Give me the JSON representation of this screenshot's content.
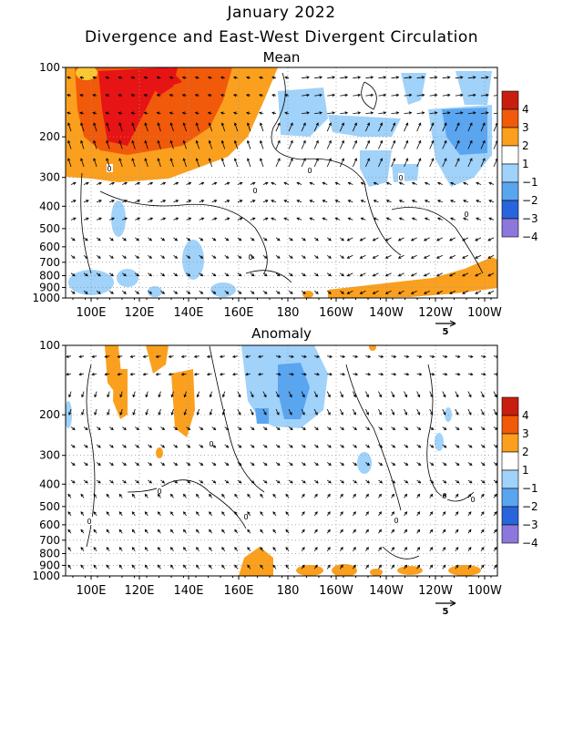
{
  "header": {
    "title": "January 2022",
    "subtitle": "Divergence and East-West Divergent Circulation"
  },
  "colors": {
    "pos4": "#c81e0f",
    "pos3": "#f05a0a",
    "pos2": "#faa01e",
    "pos1": "#ffffff",
    "neg1": "#a0d2fa",
    "neg2": "#5aa5f0",
    "neg3": "#2864dc",
    "neg4": "#8c78dc",
    "mean_hi": "#e61414",
    "orange": "#fa8214",
    "light_orange": "#fac832"
  },
  "colorbar": {
    "labels": [
      "4",
      "3",
      "2",
      "1",
      "−1",
      "−2",
      "−3",
      "−4"
    ]
  },
  "chart_data": [
    {
      "type": "heatmap",
      "panel_title": "Mean",
      "x_tick_labels": [
        "100E",
        "120E",
        "140E",
        "160E",
        "180",
        "160W",
        "140W",
        "120W",
        "100W"
      ],
      "y_tick_labels": [
        "100",
        "200",
        "300",
        "400",
        "500",
        "600",
        "700",
        "800",
        "900",
        "1000"
      ],
      "y_scale": "log",
      "vector_reference": "5",
      "contour_label": "0",
      "grid": true
    },
    {
      "type": "heatmap",
      "panel_title": "Anomaly",
      "x_tick_labels": [
        "100E",
        "120E",
        "140E",
        "160E",
        "180",
        "160W",
        "140W",
        "120W",
        "100W"
      ],
      "y_tick_labels": [
        "100",
        "200",
        "300",
        "400",
        "500",
        "600",
        "700",
        "800",
        "900",
        "1000"
      ],
      "y_scale": "log",
      "vector_reference": "5",
      "contour_label": "0",
      "grid": true
    }
  ]
}
